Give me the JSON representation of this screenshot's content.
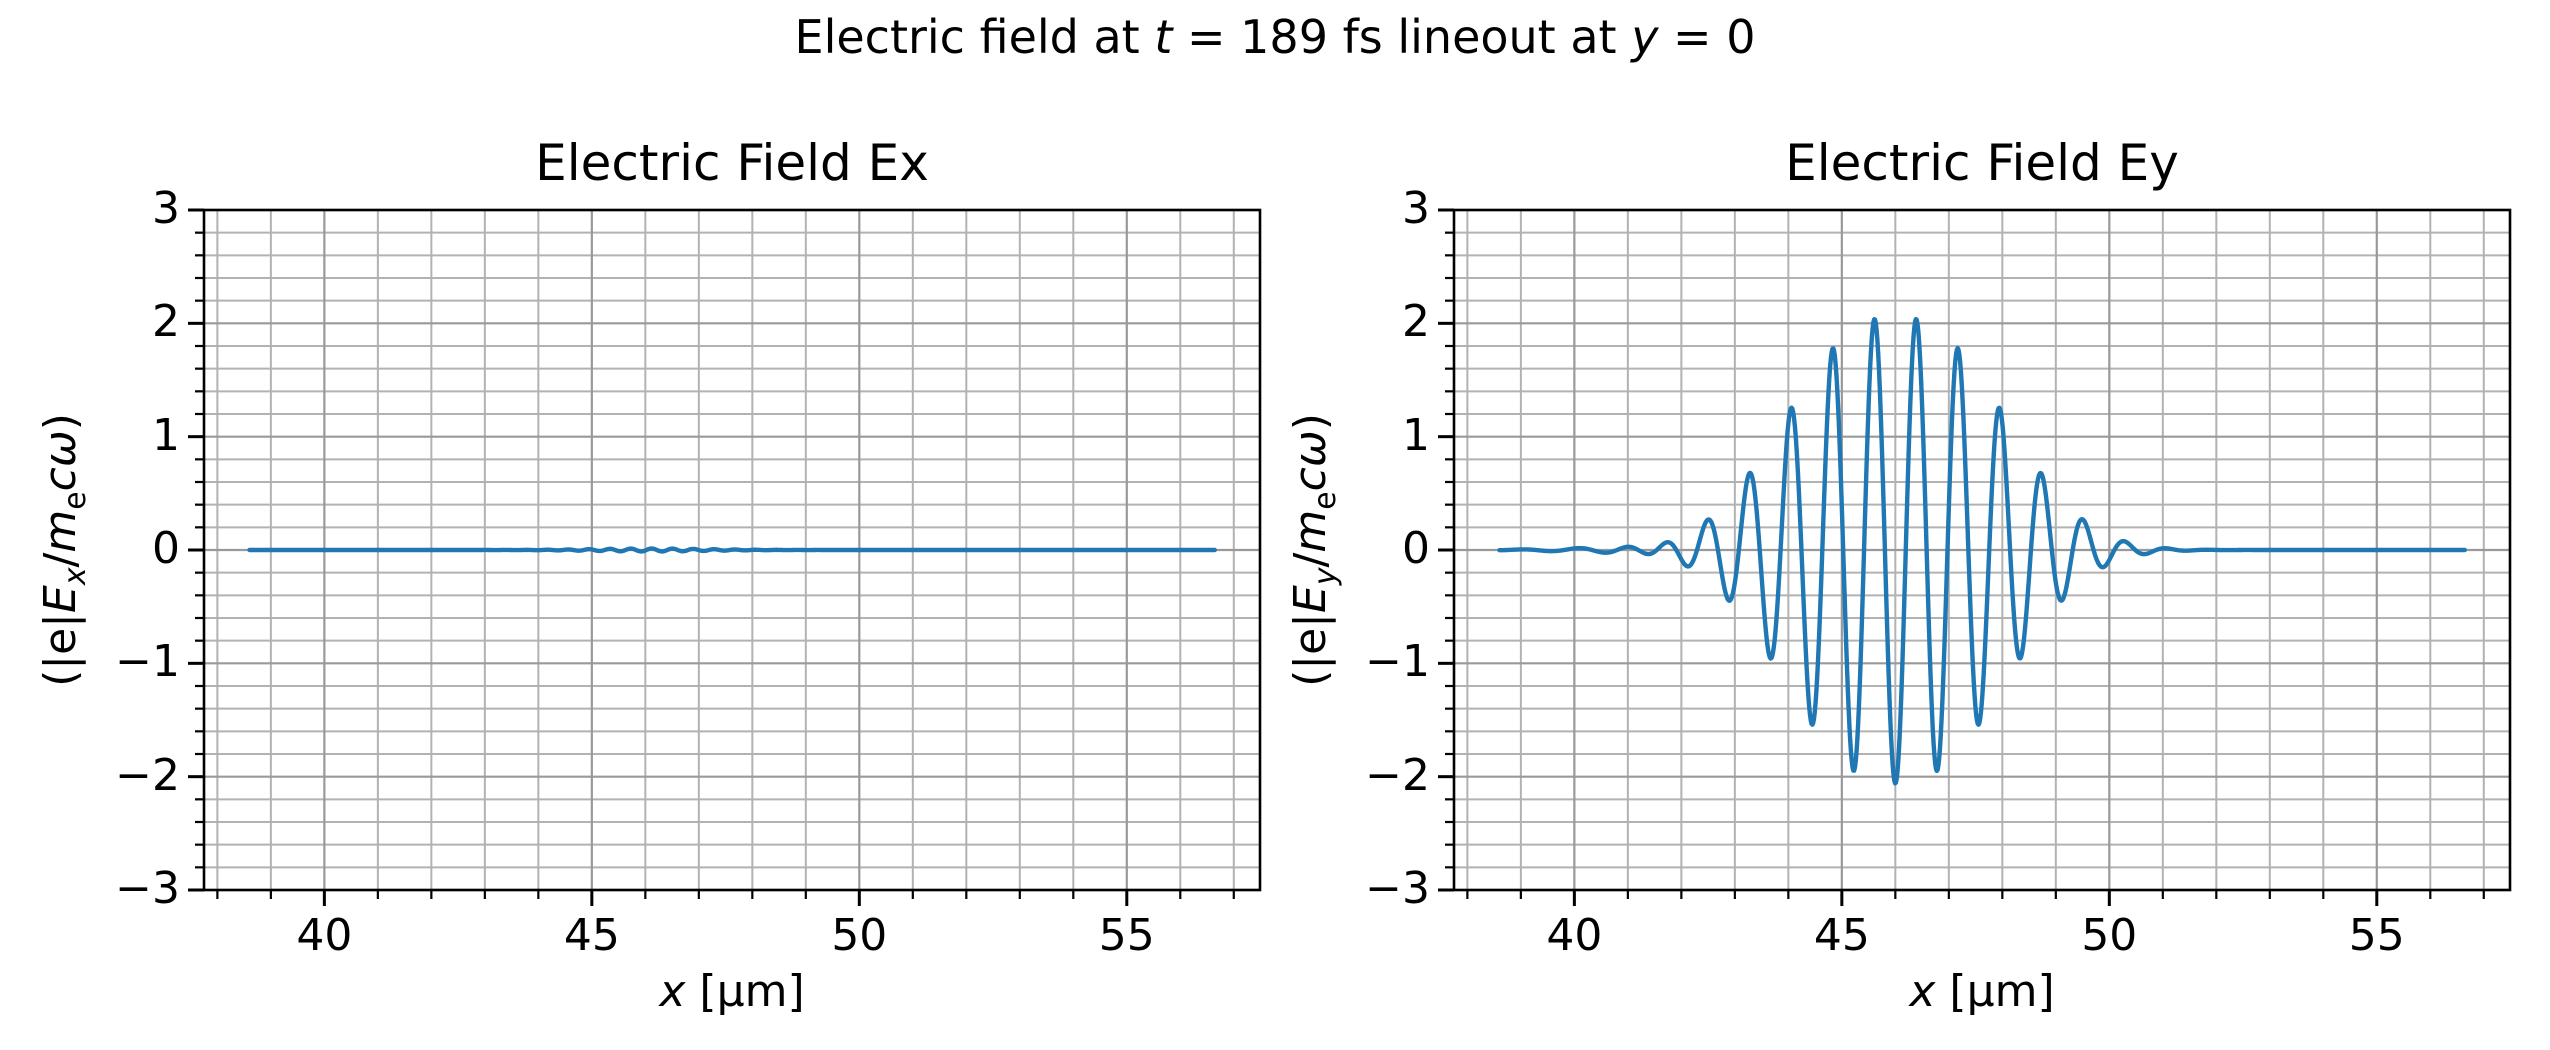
{
  "figure": {
    "suptitle_text": "Electric field at t = 189 fs lineout at y = 0",
    "suptitle_segments": [
      {
        "t": "Electric field at "
      },
      {
        "t": "t",
        "italic": true
      },
      {
        "t": " = 189 fs lineout at "
      },
      {
        "t": "y",
        "italic": true
      },
      {
        "t": " = 0"
      }
    ],
    "background": "#ffffff",
    "text_color": "#000000"
  },
  "style": {
    "line_color": "#1f77b4",
    "grid_major_color": "#999999",
    "grid_minor_color": "#b2b2b2",
    "spine_color": "#000000",
    "tick_color": "#000000"
  },
  "chart_data": [
    {
      "type": "line",
      "id": "ex",
      "title": "Electric Field Ex",
      "title_segments": [
        {
          "t": "Electric Field Ex"
        }
      ],
      "xlabel": "x [µm]",
      "xlabel_segments": [
        {
          "t": "x",
          "italic": true
        },
        {
          "t": " [µm]"
        }
      ],
      "ylabel": "(|e|Ex/mecω)",
      "ylabel_segments": [
        {
          "t": "(|e|"
        },
        {
          "t": "E",
          "italic": true
        },
        {
          "t": "x",
          "italic": true,
          "sub": true
        },
        {
          "t": "/"
        },
        {
          "t": "m",
          "italic": true
        },
        {
          "t": "e",
          "sub": true
        },
        {
          "t": "c",
          "italic": true
        },
        {
          "t": "ω",
          "italic": true
        },
        {
          "t": ")"
        }
      ],
      "xlim": [
        37.75,
        57.49
      ],
      "ylim": [
        -3,
        3
      ],
      "xticks": {
        "values": [
          40,
          45,
          50,
          55
        ],
        "labels": [
          "40",
          "45",
          "50",
          "55"
        ],
        "minor_step": 1
      },
      "yticks": {
        "values": [
          -3,
          -2,
          -1,
          0,
          1,
          2,
          3
        ],
        "labels": [
          "−3",
          "−2",
          "−1",
          "0",
          "1",
          "2",
          "3"
        ],
        "minor_step": 0.2
      },
      "grid": "both",
      "line_color": "#1f77b4",
      "x_data_range": [
        38.6,
        56.65
      ],
      "sample_step": 0.015,
      "model": {
        "baseline": 0,
        "ripples": [
          {
            "amp": 0.013,
            "center": 46.1,
            "sigma": 1.5,
            "wavelength": 0.39,
            "phase": 0
          }
        ]
      },
      "summary": "Ex is flat at 0 over x = 38.6–56.65 µm, with tiny ripples (|Ex| < 0.02) near x ≈ 44–48 µm"
    },
    {
      "type": "line",
      "id": "ey",
      "title": "Electric Field Ey",
      "title_segments": [
        {
          "t": "Electric Field Ey"
        }
      ],
      "xlabel": "x [µm]",
      "xlabel_segments": [
        {
          "t": "x",
          "italic": true
        },
        {
          "t": " [µm]"
        }
      ],
      "ylabel": "(|e|Ey/mecω)",
      "ylabel_segments": [
        {
          "t": "(|e|"
        },
        {
          "t": "E",
          "italic": true
        },
        {
          "t": "y",
          "italic": true,
          "sub": true
        },
        {
          "t": "/"
        },
        {
          "t": "m",
          "italic": true
        },
        {
          "t": "e",
          "sub": true
        },
        {
          "t": "c",
          "italic": true
        },
        {
          "t": "ω",
          "italic": true
        },
        {
          "t": ")"
        }
      ],
      "xlim": [
        37.75,
        57.49
      ],
      "ylim": [
        -3,
        3
      ],
      "xticks": {
        "values": [
          40,
          45,
          50,
          55
        ],
        "labels": [
          "40",
          "45",
          "50",
          "55"
        ],
        "minor_step": 1
      },
      "yticks": {
        "values": [
          -3,
          -2,
          -1,
          0,
          1,
          2,
          3
        ],
        "labels": [
          "−3",
          "−2",
          "−1",
          "0",
          "1",
          "2",
          "3"
        ],
        "minor_step": 0.2
      },
      "grid": "both",
      "line_color": "#1f77b4",
      "x_data_range": [
        38.6,
        56.65
      ],
      "sample_step": 0.015,
      "model": {
        "baseline": 0,
        "pulse": {
          "amp": 2.06,
          "center": 46.0,
          "width2": 6.8,
          "shape": 1.2,
          "carrier_wavelength": 0.78
        },
        "ripples": [
          {
            "amp": 0.018,
            "center": 40.7,
            "sigma": 1.5,
            "wavelength": 1.05,
            "phase": 0.6
          }
        ]
      },
      "peaks": [
        [
          42.49,
          0.21
        ],
        [
          43.26,
          0.65
        ],
        [
          44.04,
          1.17
        ],
        [
          44.82,
          1.67
        ],
        [
          45.61,
          2.0
        ],
        [
          46.39,
          2.0
        ],
        [
          47.17,
          1.73
        ],
        [
          47.95,
          1.23
        ],
        [
          48.73,
          0.68
        ],
        [
          49.51,
          0.23
        ]
      ],
      "troughs": [
        [
          42.1,
          -0.11
        ],
        [
          42.88,
          -0.44
        ],
        [
          43.66,
          -0.95
        ],
        [
          44.44,
          -1.47
        ],
        [
          45.22,
          -1.88
        ],
        [
          46.0,
          -2.07
        ],
        [
          46.78,
          -1.91
        ],
        [
          47.56,
          -1.51
        ],
        [
          48.34,
          -0.97
        ],
        [
          49.12,
          -0.45
        ],
        [
          49.9,
          -0.08
        ]
      ],
      "summary": "Ey shows a laser wave packet centered at x ≈ 46 µm with peak amplitude ≈ ±2.05 and carrier wavelength ≈ 0.78 µm; flat at 0 elsewhere over x = 38.6–56.65 µm"
    }
  ]
}
